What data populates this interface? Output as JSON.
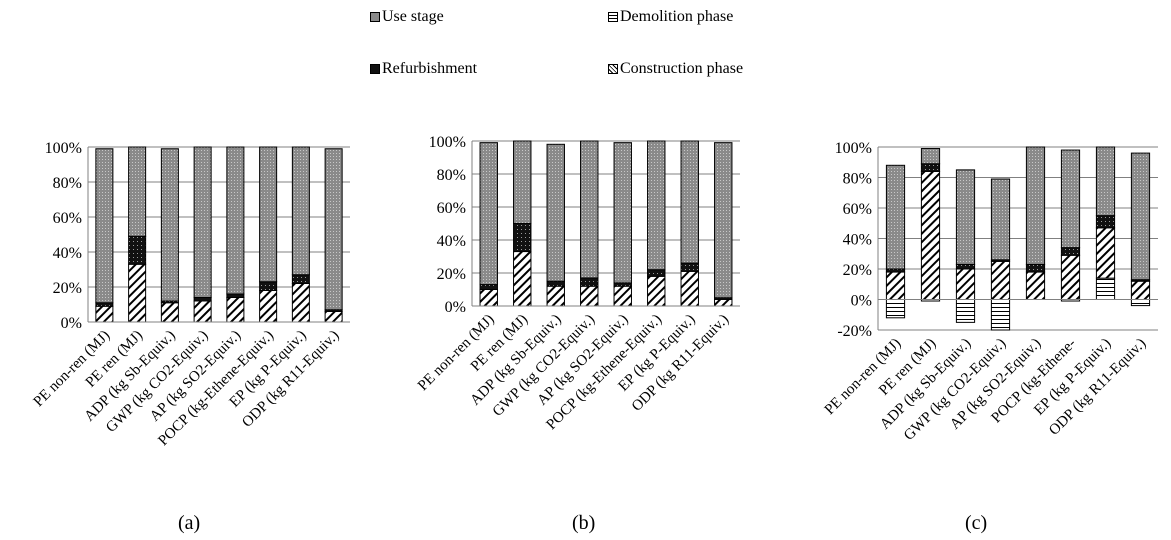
{
  "legend": {
    "use_stage": "Use stage",
    "demolition": "Demolition phase",
    "refurbishment": "Refurbishment",
    "construction": "Construction phase"
  },
  "panels": {
    "a": "(a)",
    "b": "(b)",
    "c": "(c)"
  },
  "colors": {
    "use_stage": "#8a8a8a",
    "refurbishment": "#111111",
    "demolition": "#ffffff",
    "construction": "#ffffff",
    "axis": "#808080"
  },
  "chart_data": [
    {
      "type": "bar",
      "stacked": true,
      "categories": [
        "PE non-ren (MJ)",
        "PE ren (MJ)",
        "ADP (kg Sb-Equiv.)",
        "GWP (kg CO2-Equiv.)",
        "AP (kg SO2-Equiv.)",
        "POCP (kg-Ethene-Equiv.)",
        "EP (kg P-Equiv.)",
        "ODP (kg R11-Equiv.)"
      ],
      "yticks": [
        "0%",
        "20%",
        "40%",
        "60%",
        "80%",
        "100%"
      ],
      "ylim": [
        0,
        100
      ],
      "series": [
        {
          "name": "Demolition phase",
          "values": [
            0,
            0,
            0,
            0,
            0,
            0,
            0,
            0
          ]
        },
        {
          "name": "Construction phase",
          "values": [
            9,
            33,
            11,
            12,
            14,
            18,
            22,
            6
          ]
        },
        {
          "name": "Refurbishment",
          "values": [
            2,
            16,
            1,
            2,
            2,
            5,
            5,
            1
          ]
        },
        {
          "name": "Use stage",
          "values": [
            88,
            51,
            87,
            86,
            84,
            77,
            73,
            92
          ]
        }
      ]
    },
    {
      "type": "bar",
      "stacked": true,
      "categories": [
        "PE non-ren (MJ)",
        "PE ren (MJ)",
        "ADP (kg Sb-Equiv.)",
        "GWP (kg CO2-Equiv.)",
        "AP (kg SO2-Equiv.)",
        "POCP (kg-Ethene-Equiv.)",
        "EP (kg P-Equiv.)",
        "ODP (kg R11-Equiv.)"
      ],
      "yticks": [
        "0%",
        "20%",
        "40%",
        "60%",
        "80%",
        "100%"
      ],
      "ylim": [
        0,
        100
      ],
      "series": [
        {
          "name": "Demolition phase",
          "values": [
            0,
            0,
            0,
            0,
            0,
            0,
            0,
            0
          ]
        },
        {
          "name": "Construction phase",
          "values": [
            10,
            33,
            12,
            12,
            12,
            18,
            21,
            4
          ]
        },
        {
          "name": "Refurbishment",
          "values": [
            3,
            17,
            3,
            5,
            2,
            4,
            5,
            1
          ]
        },
        {
          "name": "Use stage",
          "values": [
            86,
            50,
            83,
            83,
            85,
            78,
            74,
            94
          ]
        }
      ]
    },
    {
      "type": "bar",
      "stacked": true,
      "categories": [
        "PE non-ren (MJ)",
        "PE ren (MJ)",
        "ADP (kg Sb-Equiv.)",
        "GWP (kg CO2-Equiv.)",
        "AP (kg SO2-Equiv.)",
        "POCP (kg-Ethene-",
        "EP (kg P-Equiv.)",
        "ODP (kg R11-Equiv.)"
      ],
      "yticks": [
        "-20%",
        "0%",
        "20%",
        "40%",
        "60%",
        "80%",
        "100%"
      ],
      "ylim": [
        -20,
        100
      ],
      "series": [
        {
          "name": "Demolition phase",
          "values": [
            -12,
            -1,
            -15,
            -20,
            0,
            -1,
            14,
            -4
          ]
        },
        {
          "name": "Construction phase",
          "values": [
            18,
            84,
            20,
            25,
            18,
            29,
            33,
            12
          ]
        },
        {
          "name": "Refurbishment",
          "values": [
            2,
            5,
            3,
            1,
            5,
            5,
            8,
            1
          ]
        },
        {
          "name": "Use stage",
          "values": [
            68,
            10,
            62,
            53,
            77,
            64,
            45,
            83
          ]
        }
      ]
    }
  ]
}
